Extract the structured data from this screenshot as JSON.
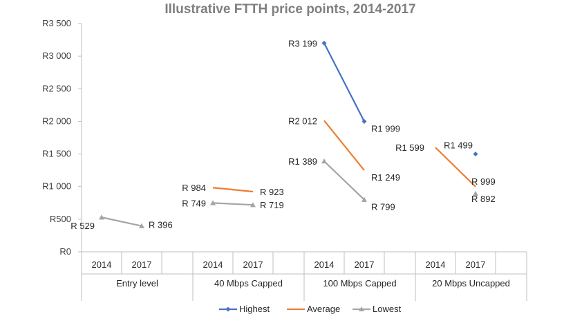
{
  "chart_data": {
    "type": "line",
    "title": "Illustrative FTTH price points, 2014-2017",
    "xlabel": "",
    "ylabel": "",
    "ylim": [
      0,
      3500
    ],
    "y_ticks": [
      0,
      500,
      1000,
      1500,
      2000,
      2500,
      3000,
      3500
    ],
    "y_tick_labels": [
      "R0",
      "R500",
      "R1 000",
      "R1 500",
      "R2 000",
      "R2 500",
      "R3 000",
      "R3 500"
    ],
    "grid": false,
    "legend_position": "bottom",
    "groups": [
      {
        "label": "Entry level",
        "categories": [
          "2014",
          "2017"
        ]
      },
      {
        "label": "40 Mbps Capped",
        "categories": [
          "2014",
          "2017"
        ]
      },
      {
        "label": "100 Mbps Capped",
        "categories": [
          "2014",
          "2017"
        ]
      },
      {
        "label": "20 Mbps Uncapped",
        "categories": [
          "2014",
          "2017"
        ]
      }
    ],
    "series": [
      {
        "name": "Highest",
        "color": "#4472C4",
        "marker": "diamond",
        "values": [
          [
            null,
            null
          ],
          [
            null,
            null
          ],
          [
            3199,
            1999
          ],
          [
            null,
            1499
          ]
        ],
        "labels": [
          [
            "",
            ""
          ],
          [
            "",
            ""
          ],
          [
            "R3 199",
            "R1 999"
          ],
          [
            "",
            "R1 499"
          ]
        ]
      },
      {
        "name": "Average",
        "color": "#ED7D31",
        "marker": "none",
        "values": [
          [
            null,
            null
          ],
          [
            984,
            923
          ],
          [
            2012,
            1249
          ],
          [
            1599,
            999
          ]
        ],
        "labels": [
          [
            "",
            ""
          ],
          [
            "R 984",
            "R 923"
          ],
          [
            "R2 012",
            "R1 249"
          ],
          [
            "R1 599",
            "R 999"
          ]
        ]
      },
      {
        "name": "Lowest",
        "color": "#A5A5A5",
        "marker": "triangle",
        "values": [
          [
            529,
            396
          ],
          [
            749,
            719
          ],
          [
            1389,
            799
          ],
          [
            null,
            892
          ]
        ],
        "labels": [
          [
            "R 529",
            "R 396"
          ],
          [
            "R 749",
            "R 719"
          ],
          [
            "R1 389",
            "R 799"
          ],
          [
            "",
            "R 892"
          ]
        ]
      }
    ]
  }
}
